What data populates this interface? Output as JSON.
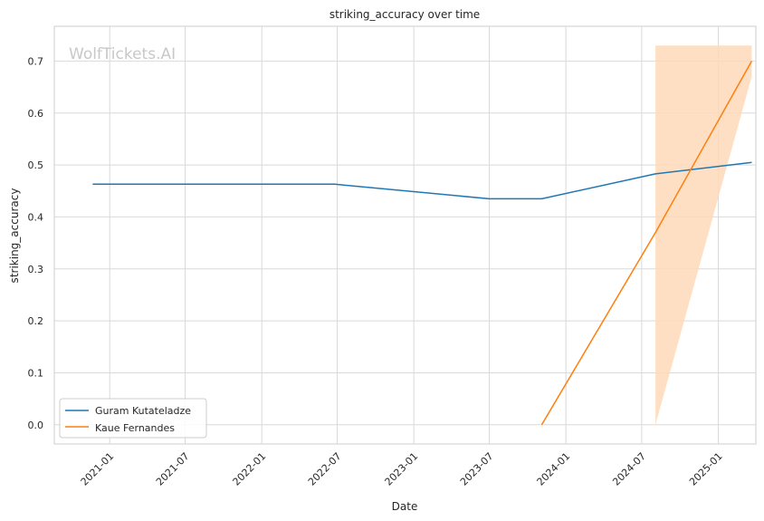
{
  "chart_data": {
    "type": "line",
    "title": "striking_accuracy over time",
    "xlabel": "Date",
    "ylabel": "striking_accuracy",
    "watermark": "WolfTickets.AI",
    "x_ticks": [
      "2021-01",
      "2021-07",
      "2022-01",
      "2022-07",
      "2023-01",
      "2023-07",
      "2024-01",
      "2024-07",
      "2025-01"
    ],
    "y_ticks": [
      "0.0",
      "0.1",
      "0.2",
      "0.3",
      "0.4",
      "0.5",
      "0.6",
      "0.7"
    ],
    "xlim": [
      "2020-08-21",
      "2025-04-01"
    ],
    "ylim": [
      -0.037,
      0.767
    ],
    "grid": true,
    "legend_position": "lower-left",
    "series": [
      {
        "name": "Guram Kutateladze",
        "color": "#1f77b4",
        "points": [
          {
            "x": "2020-11-21",
            "y": 0.463
          },
          {
            "x": "2022-06-25",
            "y": 0.463
          },
          {
            "x": "2023-07-01",
            "y": 0.435
          },
          {
            "x": "2023-11-04",
            "y": 0.435
          },
          {
            "x": "2024-08-03",
            "y": 0.483
          },
          {
            "x": "2025-03-22",
            "y": 0.505
          }
        ]
      },
      {
        "name": "Kaue Fernandes",
        "color": "#ff7f0e",
        "points": [
          {
            "x": "2023-11-04",
            "y": 0.0
          },
          {
            "x": "2024-08-03",
            "y": 0.37
          },
          {
            "x": "2025-03-22",
            "y": 0.7
          }
        ],
        "band": {
          "color": "#ffd9b8",
          "points": [
            {
              "x": "2024-08-03",
              "low": 0.0,
              "high": 0.73
            },
            {
              "x": "2025-03-22",
              "low": 0.67,
              "high": 0.73
            }
          ]
        }
      }
    ]
  }
}
